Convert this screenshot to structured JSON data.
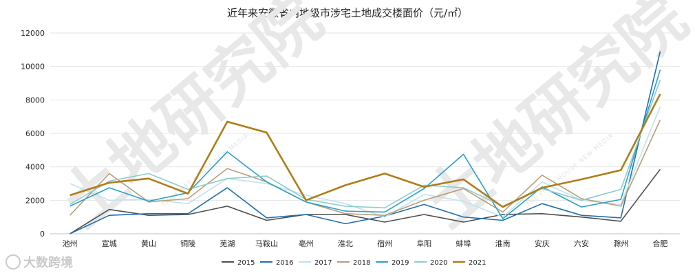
{
  "title": "近年来安徽省内地级市涉宅土地成交楼面价（元/㎡）",
  "brand": "大数跨境",
  "watermark": {
    "text": "土地研究院",
    "subtext": "THE FIRST HOUSE NEW MEDIA"
  },
  "colors": {
    "2015": "#4d4d4d",
    "2016": "#1f6fae",
    "2017": "#bfe3ee",
    "2018": "#b99d7a",
    "2019": "#2aa0c8",
    "2020": "#8fcccc",
    "2021": "#b07d16"
  },
  "chart_data": {
    "type": "line",
    "title": "近年来安徽省内地级市涉宅土地成交楼面价（元/㎡）",
    "xlabel": "",
    "ylabel": "",
    "ylim": [
      0,
      12000
    ],
    "yticks": [
      0,
      2000,
      4000,
      6000,
      8000,
      10000,
      12000
    ],
    "grid": true,
    "legend_position": "bottom",
    "categories": [
      "池州",
      "宣城",
      "黄山",
      "铜陵",
      "芜湖",
      "马鞍山",
      "亳州",
      "淮北",
      "宿州",
      "阜阳",
      "蚌埠",
      "淮南",
      "安庆",
      "六安",
      "滁州",
      "合肥"
    ],
    "series": [
      {
        "name": "2015",
        "values": [
          0,
          1450,
          1100,
          1150,
          1650,
          800,
          1150,
          1150,
          700,
          1150,
          700,
          1150,
          1200,
          1000,
          750,
          3850
        ]
      },
      {
        "name": "2016",
        "values": [
          0,
          1100,
          1200,
          1200,
          2750,
          950,
          1150,
          600,
          1050,
          1750,
          1000,
          800,
          1800,
          1100,
          950,
          10900
        ]
      },
      {
        "name": "2017",
        "values": [
          3000,
          2000,
          2050,
          1800,
          3300,
          3000,
          2300,
          1800,
          1000,
          2350,
          1950,
          1000,
          3100,
          2000,
          1750,
          7600
        ]
      },
      {
        "name": "2018",
        "values": [
          1100,
          3600,
          1900,
          2100,
          3900,
          3100,
          1900,
          1200,
          1100,
          2000,
          2700,
          1300,
          3500,
          2100,
          1650,
          6800
        ]
      },
      {
        "name": "2019",
        "values": [
          1650,
          2750,
          1950,
          2450,
          4900,
          3100,
          1900,
          1350,
          1300,
          2700,
          4750,
          900,
          2800,
          1600,
          2050,
          9800
        ]
      },
      {
        "name": "2020",
        "values": [
          1750,
          3150,
          3600,
          2650,
          3300,
          3450,
          2050,
          1650,
          1550,
          2900,
          2750,
          1650,
          2700,
          2000,
          2650,
          9200
        ]
      },
      {
        "name": "2021",
        "values": [
          2300,
          3050,
          3300,
          2400,
          6700,
          6050,
          2000,
          2900,
          3600,
          2800,
          3250,
          1600,
          2750,
          3250,
          3800,
          8350
        ]
      }
    ]
  }
}
